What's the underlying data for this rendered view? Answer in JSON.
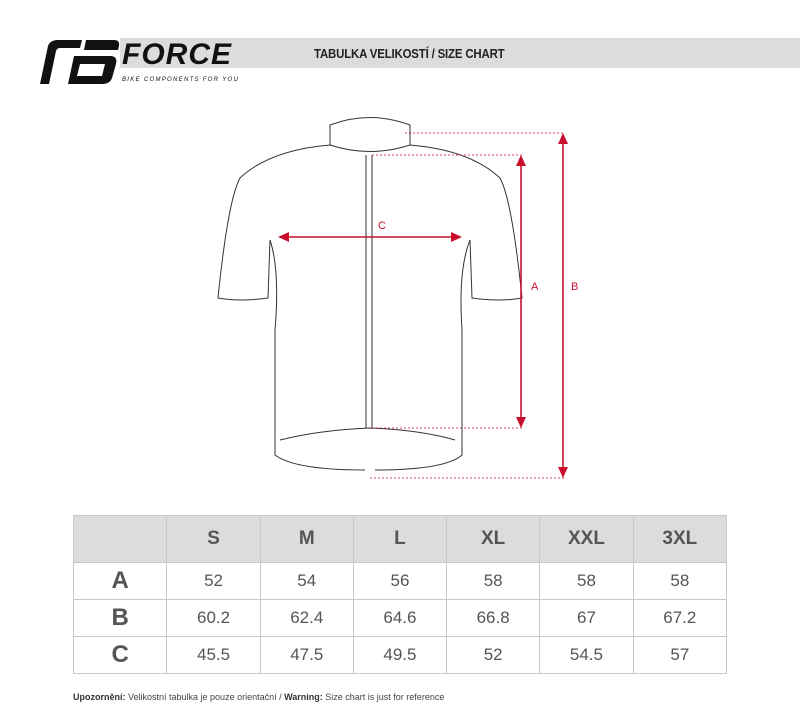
{
  "brand": {
    "name": "FORCE",
    "tagline": "BIKE COMPONENTS FOR YOU"
  },
  "header": {
    "title": "TABULKA VELIKOSTÍ / SIZE CHART"
  },
  "diagram": {
    "labels": {
      "a": "A",
      "b": "B",
      "c": "C"
    },
    "accent": "#c8102e"
  },
  "table": {
    "columns": [
      "S",
      "M",
      "L",
      "XL",
      "XXL",
      "3XL"
    ],
    "rows": [
      {
        "label": "A",
        "values": [
          "52",
          "54",
          "56",
          "58",
          "58",
          "58"
        ]
      },
      {
        "label": "B",
        "values": [
          "60.2",
          "62.4",
          "64.6",
          "66.8",
          "67",
          "67.2"
        ]
      },
      {
        "label": "C",
        "values": [
          "45.5",
          "47.5",
          "49.5",
          "52",
          "54.5",
          "57"
        ]
      }
    ]
  },
  "footer": {
    "warn_cz_label": "Upozornění:",
    "warn_cz": " Velikostní tabulka je pouze orientační / ",
    "warn_en_label": "Warning:",
    "warn_en": " Size chart is just for reference"
  }
}
